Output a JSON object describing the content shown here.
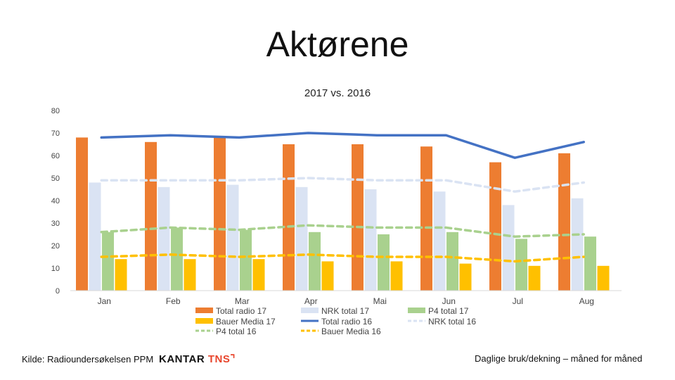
{
  "page": {
    "title": "Aktørene"
  },
  "footer": {
    "source": "Kilde: Radioundersøkelsen PPM",
    "logo_main": "KANTAR",
    "logo_accent": "TNS",
    "logo_mark": "⌝",
    "note": "Daglige bruk/dekning – måned for måned"
  },
  "chart_data": {
    "type": "bar",
    "title": "2017 vs. 2016",
    "categories": [
      "Jan",
      "Feb",
      "Mar",
      "Apr",
      "Mai",
      "Jun",
      "Jul",
      "Aug"
    ],
    "ylim": [
      0,
      80
    ],
    "yticks": [
      0,
      10,
      20,
      30,
      40,
      50,
      60,
      70,
      80
    ],
    "grid": false,
    "legend_position": "bottom",
    "bar_series": [
      {
        "name": "Total radio 17",
        "color": "#ed7d31",
        "values": [
          68,
          66,
          68,
          65,
          65,
          64,
          57,
          61
        ]
      },
      {
        "name": "NRK total 17",
        "color": "#dae3f3",
        "values": [
          48,
          46,
          47,
          46,
          45,
          44,
          38,
          41
        ]
      },
      {
        "name": "P4 total 17",
        "color": "#a9d18e",
        "values": [
          26,
          28,
          27,
          26,
          25,
          26,
          23,
          24
        ]
      },
      {
        "name": "Bauer Media 17",
        "color": "#ffc000",
        "values": [
          14,
          14,
          14,
          13,
          13,
          12,
          11,
          11
        ]
      }
    ],
    "line_series": [
      {
        "name": "Total radio 16",
        "color": "#4472c4",
        "dashed": false,
        "values": [
          68,
          69,
          68,
          70,
          69,
          69,
          59,
          66
        ]
      },
      {
        "name": "NRK total 16",
        "color": "#dae3f3",
        "dashed": true,
        "values": [
          49,
          49,
          49,
          50,
          49,
          49,
          44,
          48
        ]
      },
      {
        "name": "P4 total 16",
        "color": "#a9d18e",
        "dashed": true,
        "values": [
          26,
          28,
          27,
          29,
          28,
          28,
          24,
          25
        ]
      },
      {
        "name": "Bauer Media 16",
        "color": "#ffc000",
        "dashed": true,
        "values": [
          15,
          16,
          15,
          16,
          15,
          15,
          13,
          15
        ]
      }
    ],
    "legend_order": [
      "Total radio 17",
      "NRK total 17",
      "P4 total 17",
      "Bauer Media 17",
      "Total radio 16",
      "NRK total 16",
      "P4 total 16",
      "Bauer Media 16"
    ]
  }
}
